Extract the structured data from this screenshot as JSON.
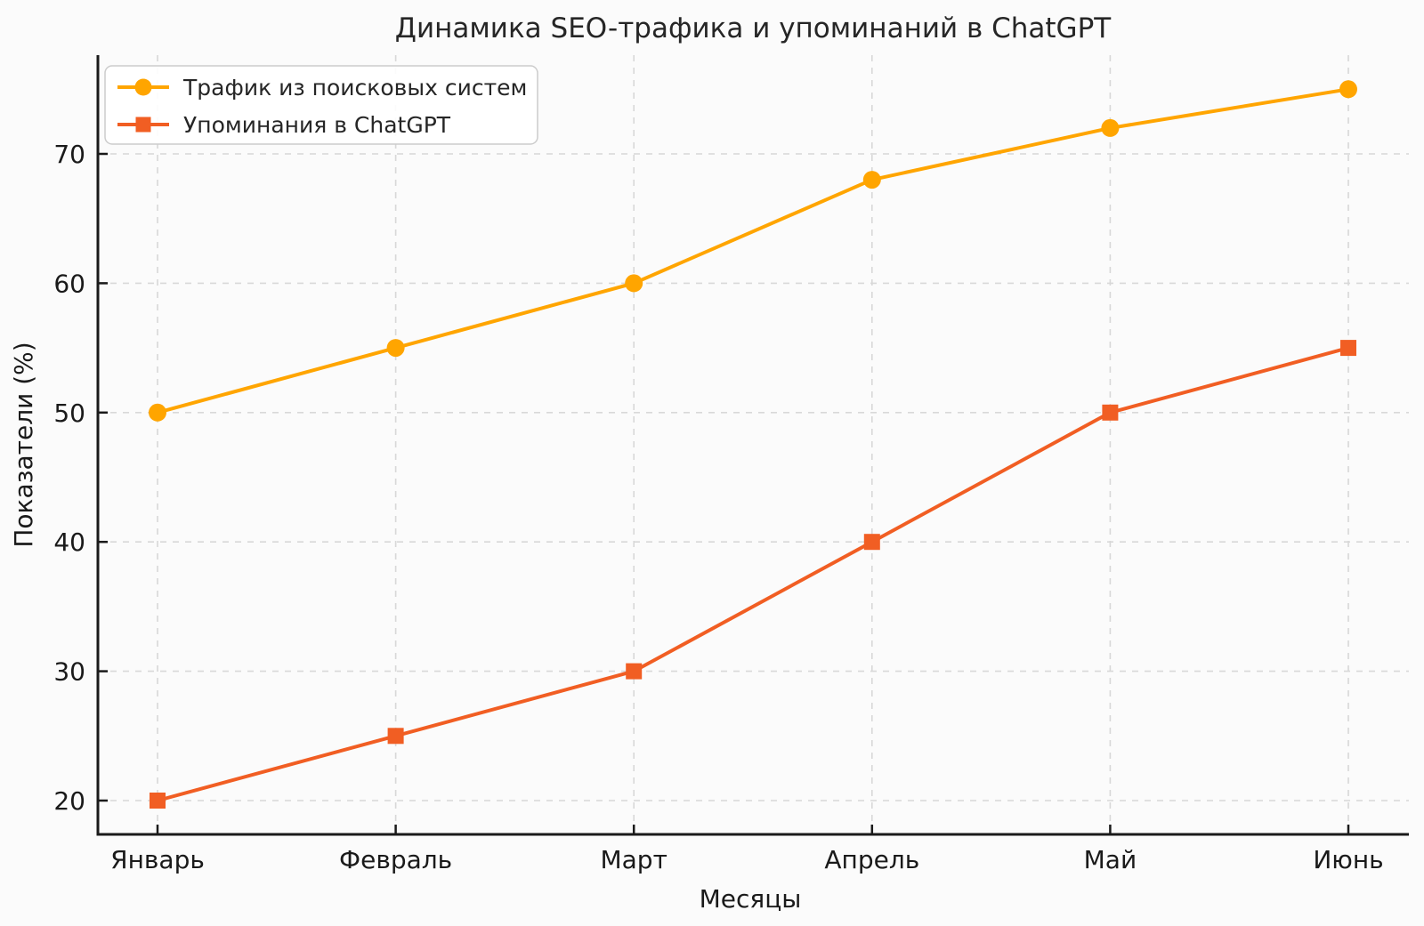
{
  "chart_data": {
    "type": "line",
    "title": "Динамика SEO-трафика и упоминаний в ChatGPT",
    "xlabel": "Месяцы",
    "ylabel": "Показатели (%)",
    "categories": [
      "Январь",
      "Февраль",
      "Март",
      "Апрель",
      "Май",
      "Июнь"
    ],
    "series": [
      {
        "name": "Трафик из поисковых систем",
        "values": [
          50,
          55,
          60,
          68,
          72,
          75
        ],
        "color": "#FFA500",
        "marker": "circle"
      },
      {
        "name": "Упоминания в ChatGPT",
        "values": [
          20,
          25,
          30,
          40,
          50,
          55
        ],
        "color": "#F15E23",
        "marker": "square"
      }
    ],
    "yticks": [
      20,
      30,
      40,
      50,
      60,
      70
    ],
    "ylim": [
      17.4,
      77.6
    ],
    "grid": true,
    "grid_style": "dashed",
    "legend_position": "upper left",
    "style": {
      "background": "#fbfbfb",
      "grid_color": "#d8d8d8",
      "spine_color": "#1a1a1a",
      "text_color": "#1a1a1a",
      "legend_bg": "#ffffff",
      "legend_border": "#cccccc"
    }
  }
}
